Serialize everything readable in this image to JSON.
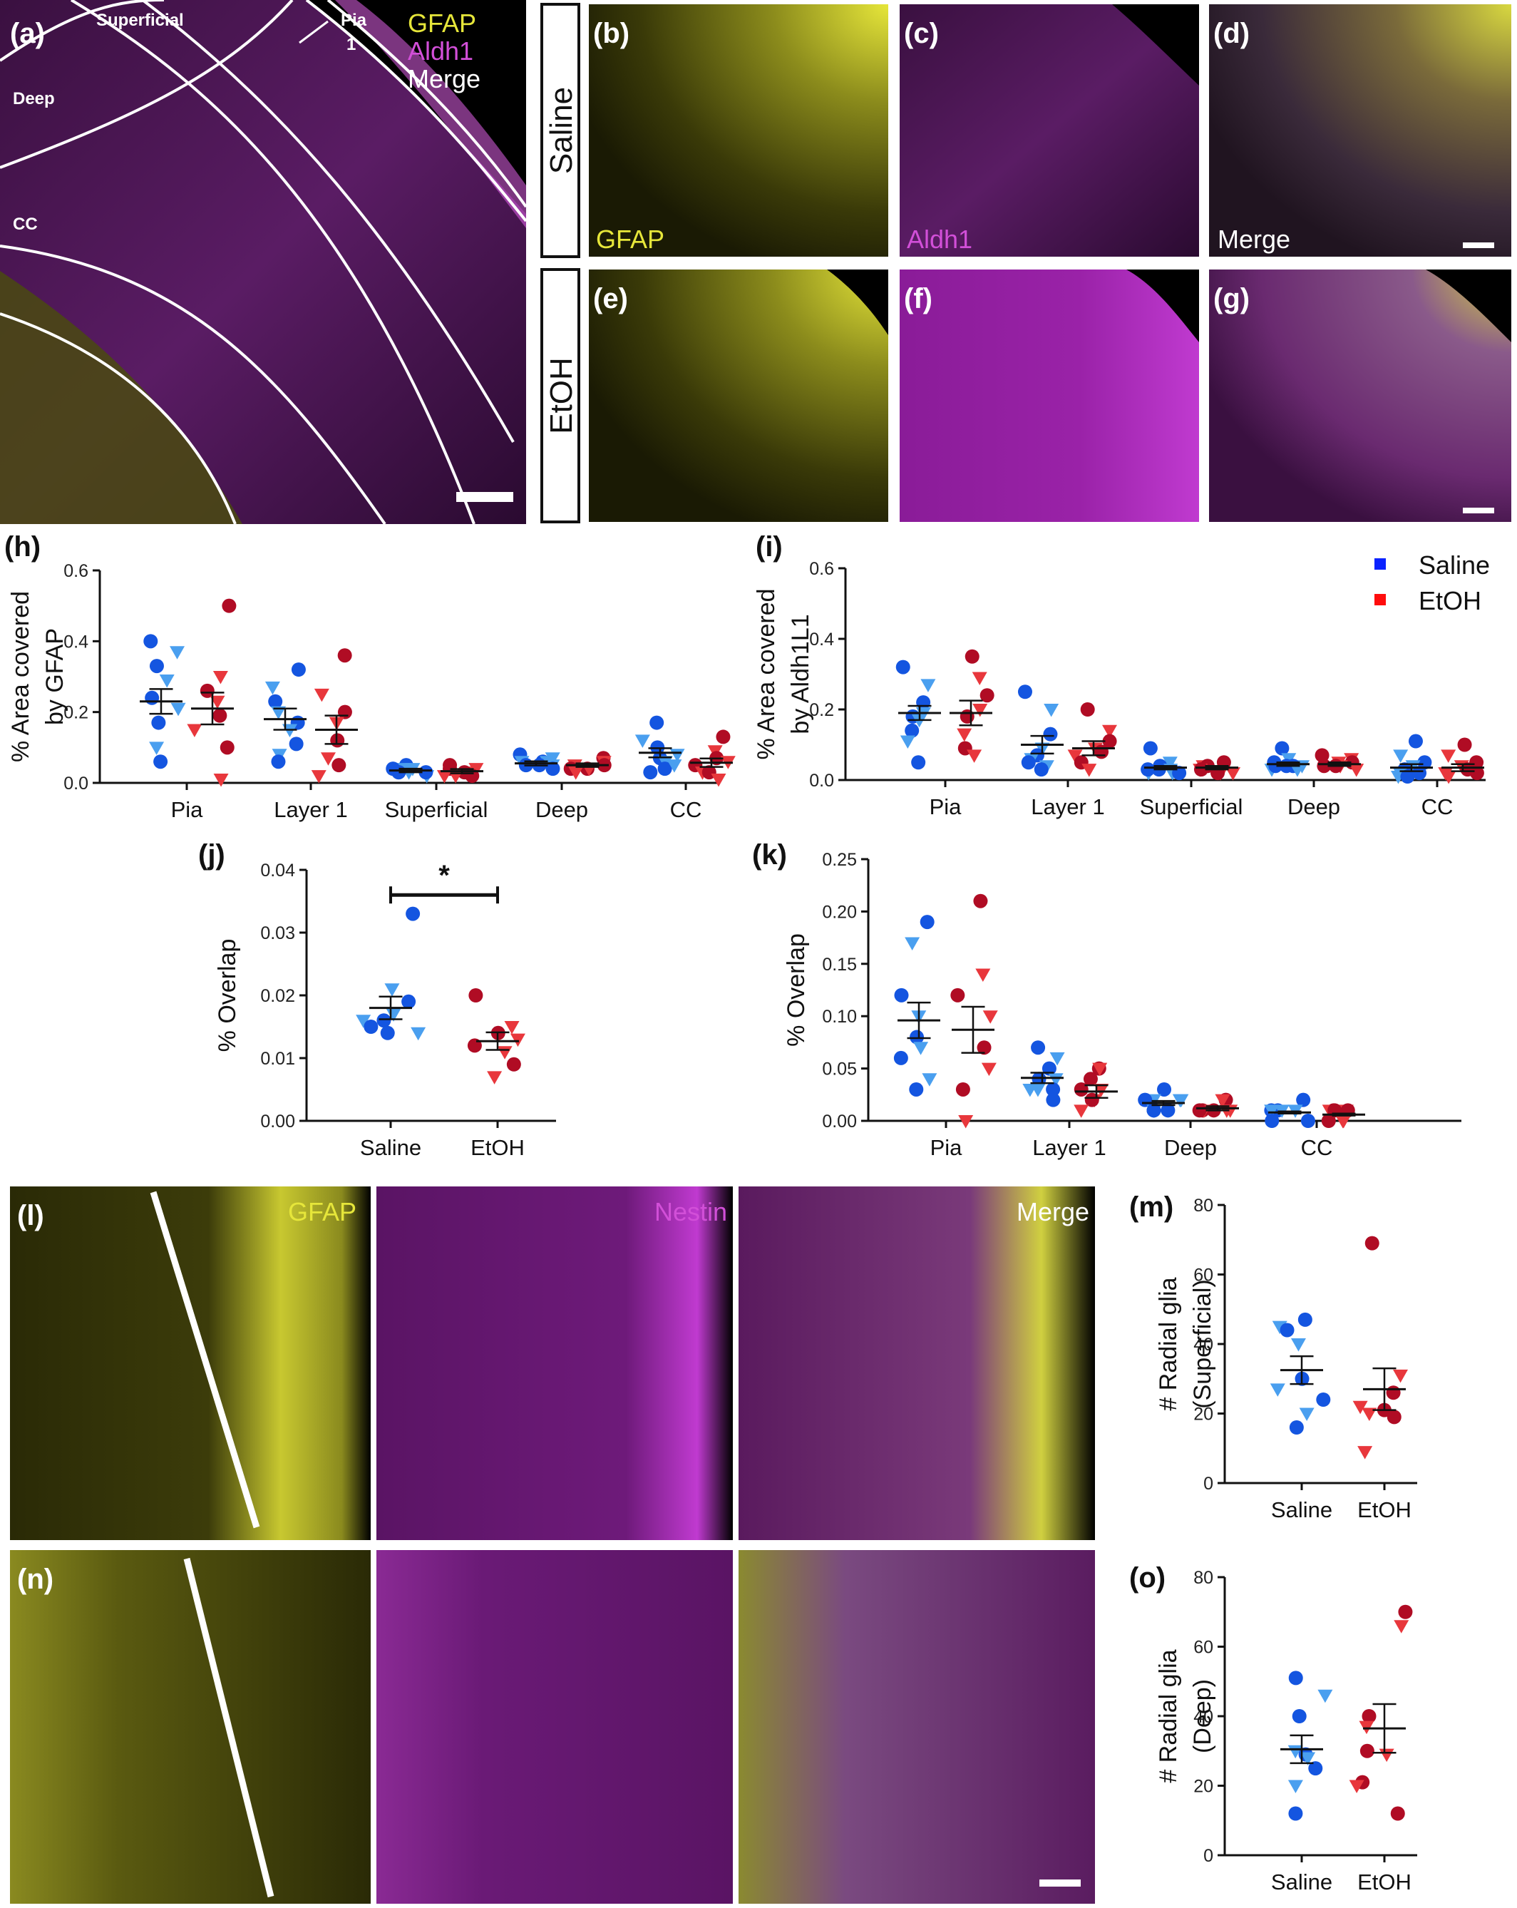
{
  "colors": {
    "saline_light": "#4a9fef",
    "saline_dark": "#1455e0",
    "etoh_light": "#e8373c",
    "etoh_dark": "#b00c24",
    "gfap": "#e6e63a",
    "aldh1": "#d24fd8",
    "merge": "#ffffff",
    "legend_saline": "#0a22ff",
    "legend_etoh": "#ff0d0d"
  },
  "images": {
    "a": {
      "label": "(a)",
      "regions": [
        "Superficial",
        "Pia",
        "1",
        "Deep",
        "CC"
      ],
      "legend": [
        "GFAP",
        "Aldh1",
        "Merge"
      ]
    },
    "b": {
      "label": "(b)",
      "text": "GFAP"
    },
    "c": {
      "label": "(c)",
      "text": "Aldh1"
    },
    "d": {
      "label": "(d)",
      "text": "Merge"
    },
    "e": {
      "label": "(e)"
    },
    "f": {
      "label": "(f)"
    },
    "g": {
      "label": "(g)"
    },
    "row_saline": "Saline",
    "row_etoh": "EtOH",
    "l": {
      "label": "(l)",
      "texts": [
        "GFAP",
        "Nestin",
        "Merge"
      ]
    },
    "n": {
      "label": "(n)"
    }
  },
  "legend": {
    "saline": "Saline",
    "etoh": "EtOH"
  },
  "chart_data": [
    {
      "id": "h",
      "panel_label": "(h)",
      "type": "scatter",
      "ylabel_lines": [
        "% Area covered",
        "by GFAP"
      ],
      "ylim": [
        0,
        0.6
      ],
      "yticks": [
        "0.0",
        "0.2",
        "0.4",
        "0.6"
      ],
      "categories": [
        "Pia",
        "Layer 1",
        "Superficial",
        "Deep",
        "CC"
      ],
      "series": [
        {
          "name": "Saline",
          "mean": [
            0.23,
            0.18,
            0.035,
            0.055,
            0.085
          ],
          "sem": [
            0.035,
            0.03,
            0.005,
            0.006,
            0.013
          ],
          "points": [
            [
              0.4,
              0.37,
              0.33,
              0.29,
              0.24,
              0.21,
              0.17,
              0.1,
              0.06
            ],
            [
              0.32,
              0.27,
              0.23,
              0.2,
              0.17,
              0.15,
              0.11,
              0.08,
              0.06
            ],
            [
              0.05,
              0.04,
              0.04,
              0.03,
              0.03,
              0.02,
              0.03,
              0.04,
              0.03
            ],
            [
              0.08,
              0.07,
              0.06,
              0.06,
              0.05,
              0.05,
              0.04,
              0.06,
              0.05
            ],
            [
              0.17,
              0.12,
              0.1,
              0.08,
              0.07,
              0.06,
              0.04,
              0.05,
              0.03
            ]
          ]
        },
        {
          "name": "EtOH",
          "mean": [
            0.21,
            0.15,
            0.033,
            0.05,
            0.057
          ],
          "sem": [
            0.045,
            0.04,
            0.006,
            0.005,
            0.012
          ],
          "points": [
            [
              0.5,
              0.3,
              0.26,
              0.23,
              0.19,
              0.15,
              0.1,
              0.01
            ],
            [
              0.36,
              0.25,
              0.2,
              0.17,
              0.12,
              0.07,
              0.05,
              0.02
            ],
            [
              0.05,
              0.04,
              0.04,
              0.03,
              0.03,
              0.02,
              0.02,
              0.02
            ],
            [
              0.07,
              0.06,
              0.05,
              0.05,
              0.04,
              0.04,
              0.04,
              0.03
            ],
            [
              0.13,
              0.09,
              0.07,
              0.06,
              0.05,
              0.03,
              0.03,
              0.01
            ]
          ]
        }
      ]
    },
    {
      "id": "i",
      "panel_label": "(i)",
      "type": "scatter",
      "ylabel_lines": [
        "% Area covered",
        "by Aldh1L1"
      ],
      "ylim": [
        0,
        0.6
      ],
      "yticks": [
        "0.0",
        "0.2",
        "0.4",
        "0.6"
      ],
      "categories": [
        "Pia",
        "Layer 1",
        "Superficial",
        "Deep",
        "CC"
      ],
      "series": [
        {
          "name": "Saline",
          "mean": [
            0.19,
            0.1,
            0.035,
            0.045,
            0.035
          ],
          "sem": [
            0.02,
            0.025,
            0.005,
            0.005,
            0.01
          ],
          "points": [
            [
              0.32,
              0.27,
              0.22,
              0.19,
              0.18,
              0.17,
              0.14,
              0.11,
              0.05
            ],
            [
              0.25,
              0.2,
              0.13,
              0.09,
              0.07,
              0.06,
              0.05,
              0.04,
              0.03
            ],
            [
              0.09,
              0.05,
              0.04,
              0.03,
              0.03,
              0.02,
              0.03,
              0.02,
              0.02
            ],
            [
              0.09,
              0.06,
              0.05,
              0.04,
              0.04,
              0.03,
              0.04,
              0.03,
              0.04
            ],
            [
              0.11,
              0.07,
              0.05,
              0.04,
              0.03,
              0.02,
              0.02,
              0.01,
              0.01
            ]
          ]
        },
        {
          "name": "EtOH",
          "mean": [
            0.19,
            0.09,
            0.035,
            0.045,
            0.035
          ],
          "sem": [
            0.035,
            0.02,
            0.005,
            0.005,
            0.01
          ],
          "points": [
            [
              0.35,
              0.29,
              0.24,
              0.2,
              0.18,
              0.13,
              0.09,
              0.07
            ],
            [
              0.2,
              0.14,
              0.11,
              0.09,
              0.08,
              0.07,
              0.05,
              0.03
            ],
            [
              0.05,
              0.04,
              0.04,
              0.03,
              0.03,
              0.02,
              0.02,
              0.02
            ],
            [
              0.07,
              0.06,
              0.05,
              0.05,
              0.04,
              0.04,
              0.04,
              0.03
            ],
            [
              0.1,
              0.07,
              0.05,
              0.04,
              0.03,
              0.02,
              0.02,
              0.01
            ]
          ]
        }
      ]
    },
    {
      "id": "j",
      "panel_label": "(j)",
      "type": "scatter",
      "ylabel_lines": [
        "% Overlap"
      ],
      "ylim": [
        0,
        0.04
      ],
      "yticks": [
        "0.00",
        "0.01",
        "0.02",
        "0.03",
        "0.04"
      ],
      "categories": [
        "Saline",
        "EtOH"
      ],
      "significance": "*",
      "series": [
        {
          "name": "Saline",
          "values": [
            0.033,
            0.021,
            0.019,
            0.017,
            0.016,
            0.016,
            0.015,
            0.014,
            0.014
          ],
          "mean": 0.018,
          "sem": 0.0018
        },
        {
          "name": "EtOH",
          "values": [
            0.02,
            0.015,
            0.014,
            0.013,
            0.012,
            0.011,
            0.009,
            0.007
          ],
          "mean": 0.0127,
          "sem": 0.0014
        }
      ]
    },
    {
      "id": "k",
      "panel_label": "(k)",
      "type": "scatter",
      "ylabel_lines": [
        "% Overlap"
      ],
      "ylim": [
        0,
        0.25
      ],
      "yticks": [
        "0.00",
        "0.05",
        "0.10",
        "0.15",
        "0.20",
        "0.25"
      ],
      "categories": [
        "Pia",
        "Layer 1",
        "Deep",
        "CC"
      ],
      "series": [
        {
          "name": "Saline",
          "mean": [
            0.096,
            0.041,
            0.017,
            0.008
          ],
          "sem": [
            0.017,
            0.005,
            0.002,
            0.001
          ],
          "points": [
            [
              0.19,
              0.17,
              0.12,
              0.1,
              0.08,
              0.07,
              0.06,
              0.04,
              0.03
            ],
            [
              0.07,
              0.06,
              0.05,
              0.04,
              0.04,
              0.03,
              0.03,
              0.03,
              0.02
            ],
            [
              0.03,
              0.02,
              0.02,
              0.02,
              0.01,
              0.01,
              0.01,
              0.02,
              0.01
            ],
            [
              0.02,
              0.01,
              0.01,
              0.01,
              0.01,
              0.01,
              0.0,
              0.01,
              0.0
            ]
          ]
        },
        {
          "name": "EtOH",
          "mean": [
            0.087,
            0.028,
            0.012,
            0.006
          ],
          "sem": [
            0.022,
            0.006,
            0.002,
            0.001
          ],
          "points": [
            [
              0.21,
              0.14,
              0.12,
              0.1,
              0.07,
              0.05,
              0.03,
              0.0
            ],
            [
              0.05,
              0.05,
              0.04,
              0.03,
              0.03,
              0.02,
              0.02,
              0.01
            ],
            [
              0.02,
              0.02,
              0.01,
              0.01,
              0.01,
              0.01,
              0.01,
              0.01
            ],
            [
              0.01,
              0.01,
              0.01,
              0.01,
              0.01,
              0.0,
              0.0,
              0.0
            ]
          ]
        }
      ]
    },
    {
      "id": "m",
      "panel_label": "(m)",
      "type": "scatter",
      "ylabel_lines": [
        "# Radial glia",
        "(Superficial)"
      ],
      "ylim": [
        0,
        80
      ],
      "yticks": [
        "0",
        "20",
        "40",
        "60",
        "80"
      ],
      "categories": [
        "Saline",
        "EtOH"
      ],
      "series": [
        {
          "name": "Saline",
          "values": [
            47,
            45,
            44,
            40,
            30,
            27,
            24,
            20,
            16
          ],
          "mean": 32.5,
          "sem": 4
        },
        {
          "name": "EtOH",
          "values": [
            69,
            31,
            26,
            22,
            21,
            20,
            19,
            9
          ],
          "mean": 27,
          "sem": 6
        }
      ]
    },
    {
      "id": "o",
      "panel_label": "(o)",
      "type": "scatter",
      "ylabel_lines": [
        "# Radial glia",
        "(Deep)"
      ],
      "ylim": [
        0,
        80
      ],
      "yticks": [
        "0",
        "20",
        "40",
        "60",
        "80"
      ],
      "categories": [
        "Saline",
        "EtOH"
      ],
      "series": [
        {
          "name": "Saline",
          "values": [
            51,
            46,
            40,
            30,
            29,
            28,
            25,
            20,
            12
          ],
          "mean": 30.5,
          "sem": 4
        },
        {
          "name": "EtOH",
          "values": [
            70,
            66,
            40,
            37,
            30,
            29,
            21,
            20,
            12
          ],
          "mean": 36.5,
          "sem": 7
        }
      ]
    }
  ]
}
